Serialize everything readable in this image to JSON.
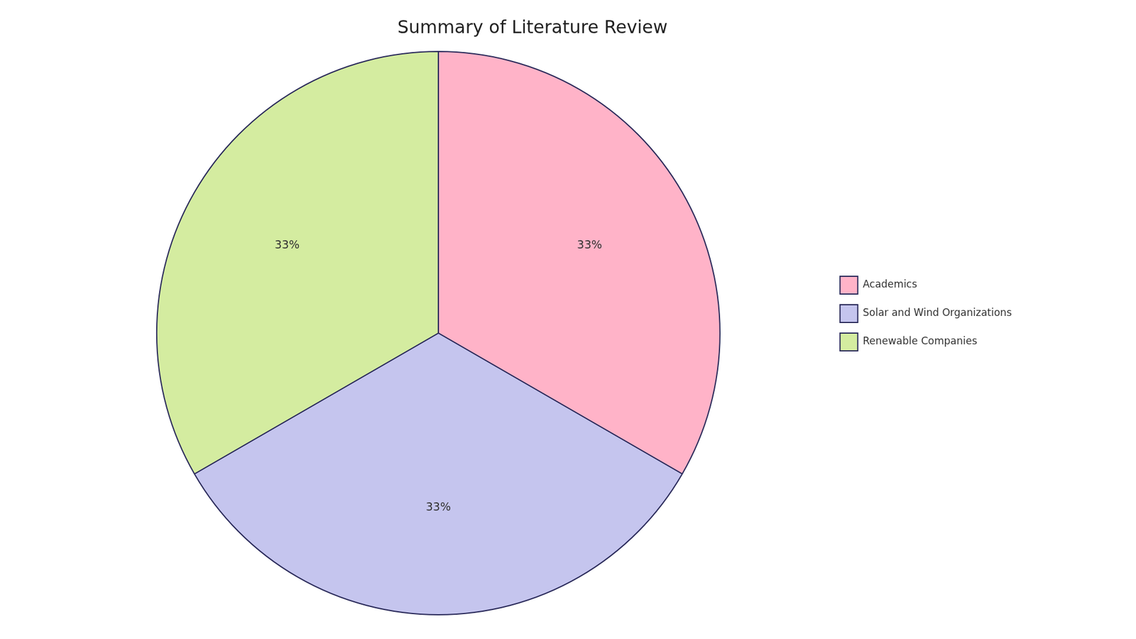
{
  "chart_data": {
    "type": "pie",
    "title": "Summary of Literature Review",
    "categories": [
      "Academics",
      "Solar and Wind Organizations",
      "Renewable Companies"
    ],
    "values": [
      33,
      33,
      33
    ],
    "value_labels": [
      "33%",
      "33%",
      "33%"
    ],
    "colors": [
      "#FFB3C8",
      "#C5C5EE",
      "#D4ECA0"
    ],
    "data_labels": true,
    "legend": "right"
  }
}
